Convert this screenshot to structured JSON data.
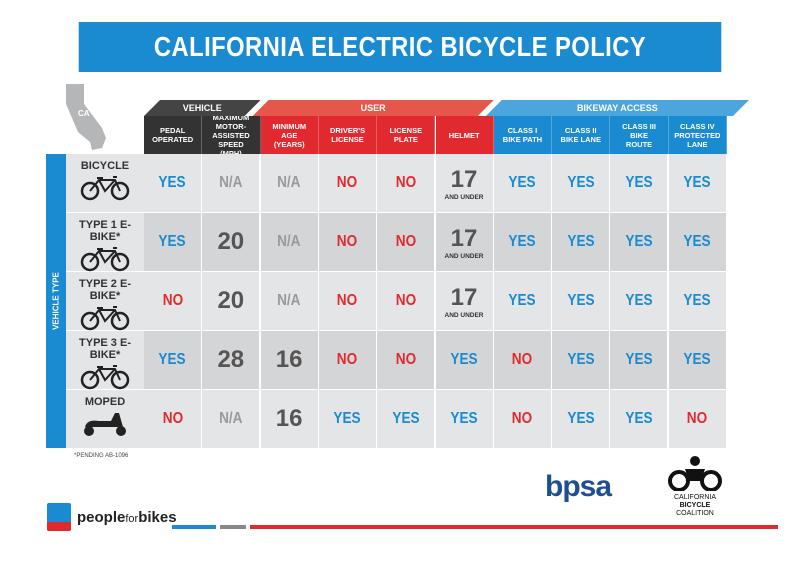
{
  "title": "CALIFORNIA ELECTRIC BICYCLE POLICY",
  "state_label": "CA",
  "groups": [
    {
      "label": "VEHICLE",
      "color": "#333333"
    },
    {
      "label": "USER",
      "color": "#e02a2f"
    },
    {
      "label": "BIKEWAY ACCESS",
      "color": "#1a8bd0"
    }
  ],
  "columns": [
    {
      "label": "PEDAL OPERATED",
      "group": 0
    },
    {
      "label": "MAXIMUM MOTOR-ASSISTED SPEED (MPH)",
      "group": 0
    },
    {
      "label": "MINIMUM AGE (YEARS)",
      "group": 1
    },
    {
      "label": "DRIVER'S LICENSE",
      "group": 1
    },
    {
      "label": "LICENSE PLATE",
      "group": 1
    },
    {
      "label": "HELMET",
      "group": 1
    },
    {
      "label": "CLASS I BIKE PATH",
      "group": 2
    },
    {
      "label": "CLASS II BIKE LANE",
      "group": 2
    },
    {
      "label": "CLASS III BIKE ROUTE",
      "group": 2
    },
    {
      "label": "CLASS IV PROTECTED LANE",
      "group": 2
    }
  ],
  "row_axis_label": "VEHICLE TYPE",
  "rows": [
    {
      "label": "BICYCLE",
      "icon": "bicycle-icon",
      "cells": [
        "YES",
        "N/A",
        "N/A",
        "NO",
        "NO",
        "17|AND UNDER",
        "YES",
        "YES",
        "YES",
        "YES"
      ]
    },
    {
      "label": "TYPE 1 E-BIKE*",
      "icon": "ebike-icon",
      "cells": [
        "YES",
        "20",
        "N/A",
        "NO",
        "NO",
        "17|AND UNDER",
        "YES",
        "YES",
        "YES",
        "YES"
      ]
    },
    {
      "label": "TYPE 2 E-BIKE*",
      "icon": "ebike-icon",
      "cells": [
        "NO",
        "20",
        "N/A",
        "NO",
        "NO",
        "17|AND UNDER",
        "YES",
        "YES",
        "YES",
        "YES"
      ]
    },
    {
      "label": "TYPE 3 E-BIKE*",
      "icon": "ebike-icon",
      "cells": [
        "YES",
        "28",
        "16",
        "NO",
        "NO",
        "YES",
        "NO",
        "YES",
        "YES",
        "YES"
      ]
    },
    {
      "label": "MOPED",
      "icon": "moped-icon",
      "cells": [
        "NO",
        "N/A",
        "16",
        "YES",
        "YES",
        "YES",
        "NO",
        "YES",
        "YES",
        "NO"
      ]
    }
  ],
  "footnote": "*PENDING AB-1096",
  "logos": {
    "peopleforbikes": {
      "a": "people",
      "b": "for",
      "c": "bikes"
    },
    "bpsa": "bpsa",
    "cbc": [
      "CALIFORNIA",
      "BICYCLE",
      "COALITION"
    ]
  },
  "colors": {
    "yes": "#1a8bd0",
    "no": "#e02a2f",
    "na": "#9a9a9a",
    "number": "#555555"
  }
}
